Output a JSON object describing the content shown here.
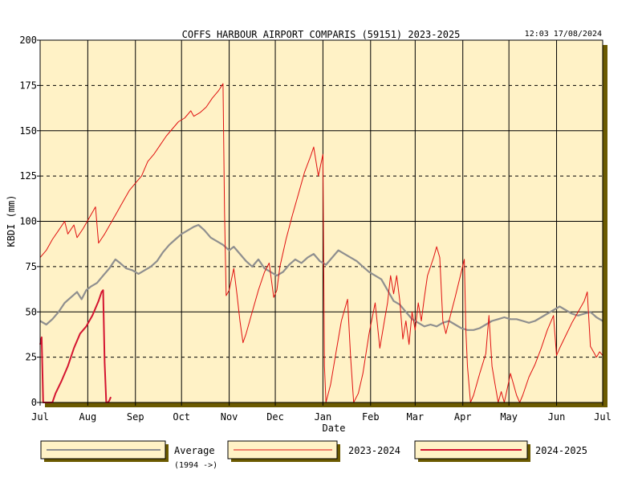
{
  "timestamp": "12:03 17/08/2024",
  "colors": {
    "plot_bg": "#fff2c6",
    "shadow": "#6b5a00",
    "average": "#8f8f8f",
    "y2023": "#e01010",
    "y2024": "#d41530",
    "grid": "#000000"
  },
  "chart_data": {
    "type": "line",
    "title": "COFFS HARBOUR AIRPORT COMPARIS (59151) 2023-2025",
    "xlabel": "Date",
    "ylabel": "KBDI (mm)",
    "ylim": [
      0,
      200
    ],
    "yticks": [
      0,
      25,
      50,
      75,
      100,
      125,
      150,
      175,
      200
    ],
    "xlim": [
      0,
      366
    ],
    "xticks": [
      {
        "label": "Jul",
        "day": 0
      },
      {
        "label": "Aug",
        "day": 31
      },
      {
        "label": "Sep",
        "day": 62
      },
      {
        "label": "Oct",
        "day": 92
      },
      {
        "label": "Nov",
        "day": 123
      },
      {
        "label": "Dec",
        "day": 153
      },
      {
        "label": "Jan",
        "day": 184
      },
      {
        "label": "Feb",
        "day": 215
      },
      {
        "label": "Mar",
        "day": 244
      },
      {
        "label": "Apr",
        "day": 275
      },
      {
        "label": "May",
        "day": 305
      },
      {
        "label": "Jun",
        "day": 336
      },
      {
        "label": "Jul",
        "day": 366
      }
    ],
    "grid": true,
    "legend_position": "bottom",
    "series": [
      {
        "name": "Average",
        "note": "(1994 ->)",
        "points": [
          [
            0,
            45
          ],
          [
            4,
            43
          ],
          [
            8,
            46
          ],
          [
            12,
            50
          ],
          [
            16,
            55
          ],
          [
            20,
            58
          ],
          [
            24,
            61
          ],
          [
            27,
            57
          ],
          [
            30,
            62
          ],
          [
            33,
            64
          ],
          [
            37,
            66
          ],
          [
            41,
            70
          ],
          [
            45,
            74
          ],
          [
            49,
            79
          ],
          [
            52,
            77
          ],
          [
            56,
            74
          ],
          [
            60,
            73
          ],
          [
            64,
            71
          ],
          [
            68,
            73
          ],
          [
            72,
            75
          ],
          [
            76,
            78
          ],
          [
            80,
            83
          ],
          [
            84,
            87
          ],
          [
            88,
            90
          ],
          [
            92,
            93
          ],
          [
            96,
            95
          ],
          [
            100,
            97
          ],
          [
            103,
            98
          ],
          [
            107,
            95
          ],
          [
            111,
            91
          ],
          [
            115,
            89
          ],
          [
            119,
            87
          ],
          [
            123,
            84
          ],
          [
            126,
            86
          ],
          [
            130,
            82
          ],
          [
            134,
            78
          ],
          [
            138,
            75
          ],
          [
            142,
            79
          ],
          [
            146,
            74
          ],
          [
            150,
            72
          ],
          [
            154,
            70
          ],
          [
            158,
            72
          ],
          [
            162,
            76
          ],
          [
            166,
            79
          ],
          [
            170,
            77
          ],
          [
            174,
            80
          ],
          [
            178,
            82
          ],
          [
            182,
            78
          ],
          [
            186,
            76
          ],
          [
            190,
            80
          ],
          [
            194,
            84
          ],
          [
            198,
            82
          ],
          [
            202,
            80
          ],
          [
            206,
            78
          ],
          [
            210,
            75
          ],
          [
            214,
            72
          ],
          [
            218,
            70
          ],
          [
            222,
            68
          ],
          [
            226,
            62
          ],
          [
            230,
            56
          ],
          [
            234,
            54
          ],
          [
            238,
            50
          ],
          [
            242,
            46
          ],
          [
            246,
            44
          ],
          [
            250,
            42
          ],
          [
            254,
            43
          ],
          [
            258,
            42
          ],
          [
            262,
            44
          ],
          [
            266,
            45
          ],
          [
            270,
            43
          ],
          [
            274,
            41
          ],
          [
            278,
            40
          ],
          [
            282,
            40
          ],
          [
            286,
            41
          ],
          [
            290,
            43
          ],
          [
            294,
            45
          ],
          [
            298,
            46
          ],
          [
            302,
            47
          ],
          [
            306,
            46
          ],
          [
            310,
            46
          ],
          [
            314,
            45
          ],
          [
            318,
            44
          ],
          [
            322,
            45
          ],
          [
            326,
            47
          ],
          [
            330,
            49
          ],
          [
            334,
            51
          ],
          [
            338,
            53
          ],
          [
            342,
            51
          ],
          [
            346,
            49
          ],
          [
            350,
            48
          ],
          [
            354,
            49
          ],
          [
            358,
            50
          ],
          [
            362,
            47
          ],
          [
            366,
            45
          ]
        ]
      },
      {
        "name": "2023-2024",
        "points": [
          [
            0,
            80
          ],
          [
            4,
            84
          ],
          [
            8,
            90
          ],
          [
            12,
            95
          ],
          [
            16,
            100
          ],
          [
            18,
            93
          ],
          [
            22,
            98
          ],
          [
            24,
            91
          ],
          [
            28,
            96
          ],
          [
            32,
            102
          ],
          [
            36,
            108
          ],
          [
            38,
            88
          ],
          [
            42,
            93
          ],
          [
            46,
            99
          ],
          [
            50,
            105
          ],
          [
            54,
            111
          ],
          [
            58,
            117
          ],
          [
            62,
            121
          ],
          [
            66,
            125
          ],
          [
            70,
            133
          ],
          [
            74,
            137
          ],
          [
            78,
            142
          ],
          [
            82,
            147
          ],
          [
            86,
            151
          ],
          [
            90,
            155
          ],
          [
            94,
            157
          ],
          [
            96,
            159
          ],
          [
            98,
            161
          ],
          [
            100,
            158
          ],
          [
            104,
            160
          ],
          [
            108,
            163
          ],
          [
            112,
            168
          ],
          [
            116,
            172
          ],
          [
            119,
            176
          ],
          [
            120,
            105
          ],
          [
            121,
            59
          ],
          [
            123,
            62
          ],
          [
            126,
            74
          ],
          [
            128,
            60
          ],
          [
            130,
            45
          ],
          [
            132,
            33
          ],
          [
            134,
            38
          ],
          [
            138,
            50
          ],
          [
            142,
            62
          ],
          [
            146,
            72
          ],
          [
            149,
            77
          ],
          [
            152,
            58
          ],
          [
            154,
            62
          ],
          [
            156,
            75
          ],
          [
            160,
            90
          ],
          [
            164,
            103
          ],
          [
            168,
            115
          ],
          [
            172,
            127
          ],
          [
            176,
            136
          ],
          [
            178,
            141
          ],
          [
            181,
            125
          ],
          [
            184,
            137
          ],
          [
            185,
            20
          ],
          [
            186,
            0
          ],
          [
            189,
            10
          ],
          [
            192,
            25
          ],
          [
            196,
            45
          ],
          [
            200,
            57
          ],
          [
            202,
            25
          ],
          [
            204,
            0
          ],
          [
            207,
            5
          ],
          [
            210,
            16
          ],
          [
            214,
            38
          ],
          [
            218,
            55
          ],
          [
            221,
            30
          ],
          [
            224,
            45
          ],
          [
            226,
            55
          ],
          [
            228,
            70
          ],
          [
            230,
            60
          ],
          [
            232,
            70
          ],
          [
            234,
            56
          ],
          [
            236,
            35
          ],
          [
            238,
            45
          ],
          [
            240,
            32
          ],
          [
            242,
            50
          ],
          [
            244,
            40
          ],
          [
            246,
            55
          ],
          [
            248,
            45
          ],
          [
            250,
            58
          ],
          [
            252,
            70
          ],
          [
            254,
            75
          ],
          [
            256,
            80
          ],
          [
            258,
            86
          ],
          [
            260,
            80
          ],
          [
            262,
            45
          ],
          [
            264,
            38
          ],
          [
            266,
            45
          ],
          [
            270,
            58
          ],
          [
            274,
            72
          ],
          [
            276,
            79
          ],
          [
            277,
            40
          ],
          [
            278,
            20
          ],
          [
            280,
            0
          ],
          [
            282,
            4
          ],
          [
            286,
            16
          ],
          [
            290,
            27
          ],
          [
            292,
            48
          ],
          [
            294,
            20
          ],
          [
            296,
            10
          ],
          [
            298,
            0
          ],
          [
            300,
            6
          ],
          [
            302,
            0
          ],
          [
            304,
            8
          ],
          [
            306,
            16
          ],
          [
            308,
            10
          ],
          [
            310,
            4
          ],
          [
            312,
            0
          ],
          [
            314,
            4
          ],
          [
            318,
            14
          ],
          [
            322,
            21
          ],
          [
            326,
            30
          ],
          [
            330,
            40
          ],
          [
            334,
            48
          ],
          [
            336,
            26
          ],
          [
            338,
            30
          ],
          [
            342,
            37
          ],
          [
            346,
            44
          ],
          [
            350,
            50
          ],
          [
            354,
            56
          ],
          [
            356,
            61
          ],
          [
            358,
            31
          ],
          [
            360,
            28
          ],
          [
            362,
            25
          ],
          [
            364,
            28
          ],
          [
            366,
            26
          ]
        ]
      },
      {
        "name": "2024-2025",
        "points": [
          [
            0,
            32
          ],
          [
            1,
            36
          ],
          [
            2,
            0
          ],
          [
            6,
            0
          ],
          [
            8,
            0
          ],
          [
            10,
            5
          ],
          [
            14,
            12
          ],
          [
            18,
            20
          ],
          [
            22,
            30
          ],
          [
            26,
            38
          ],
          [
            30,
            42
          ],
          [
            34,
            48
          ],
          [
            38,
            56
          ],
          [
            40,
            61
          ],
          [
            41,
            62
          ],
          [
            42,
            22
          ],
          [
            43,
            0
          ],
          [
            44,
            0
          ],
          [
            45,
            1
          ],
          [
            46,
            3
          ]
        ]
      }
    ]
  },
  "legend": [
    {
      "label": "Average",
      "sub": "(1994 ->)"
    },
    {
      "label": "2023-2024"
    },
    {
      "label": "2024-2025"
    }
  ]
}
